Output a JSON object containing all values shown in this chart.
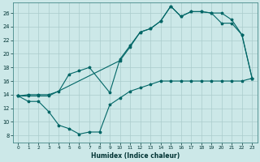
{
  "xlabel": "Humidex (Indice chaleur)",
  "bg_color": "#cce8e8",
  "grid_color": "#aacccc",
  "line_color": "#006666",
  "xlim": [
    -0.5,
    23.5
  ],
  "ylim": [
    7,
    27.5
  ],
  "xticks": [
    0,
    1,
    2,
    3,
    4,
    5,
    6,
    7,
    8,
    9,
    10,
    11,
    12,
    13,
    14,
    15,
    16,
    17,
    18,
    19,
    20,
    21,
    22,
    23
  ],
  "yticks": [
    8,
    10,
    12,
    14,
    16,
    18,
    20,
    22,
    24,
    26
  ],
  "line1_x": [
    0,
    1,
    2,
    3,
    4,
    5,
    6,
    7,
    8,
    9,
    10,
    11,
    12,
    13,
    14,
    15,
    16,
    17,
    18,
    19,
    20,
    21,
    22,
    23
  ],
  "line1_y": [
    13.8,
    13.0,
    13.0,
    11.5,
    9.5,
    9.0,
    8.2,
    8.5,
    8.5,
    12.5,
    13.5,
    14.5,
    15.0,
    15.5,
    16.0,
    16.0,
    16.0,
    16.0,
    16.0,
    16.0,
    16.0,
    16.0,
    16.0,
    16.4
  ],
  "line2_x": [
    0,
    1,
    2,
    3,
    10,
    11,
    12,
    13,
    14,
    15,
    16,
    17,
    18,
    19,
    20,
    21,
    22,
    23
  ],
  "line2_y": [
    13.8,
    13.8,
    13.8,
    13.8,
    19.0,
    21.0,
    23.2,
    23.7,
    24.8,
    27.0,
    25.5,
    26.2,
    26.2,
    26.0,
    26.0,
    25.0,
    22.8,
    16.4
  ],
  "line3_x": [
    0,
    1,
    2,
    3,
    4,
    5,
    6,
    7,
    9,
    10,
    11,
    12,
    13,
    14,
    15,
    16,
    17,
    18,
    19,
    20,
    21,
    22,
    23
  ],
  "line3_y": [
    13.8,
    14.0,
    14.0,
    14.0,
    14.5,
    17.0,
    17.5,
    18.0,
    14.3,
    19.2,
    21.2,
    23.2,
    23.7,
    24.8,
    27.0,
    25.5,
    26.2,
    26.2,
    26.0,
    24.5,
    24.5,
    22.8,
    16.4
  ]
}
